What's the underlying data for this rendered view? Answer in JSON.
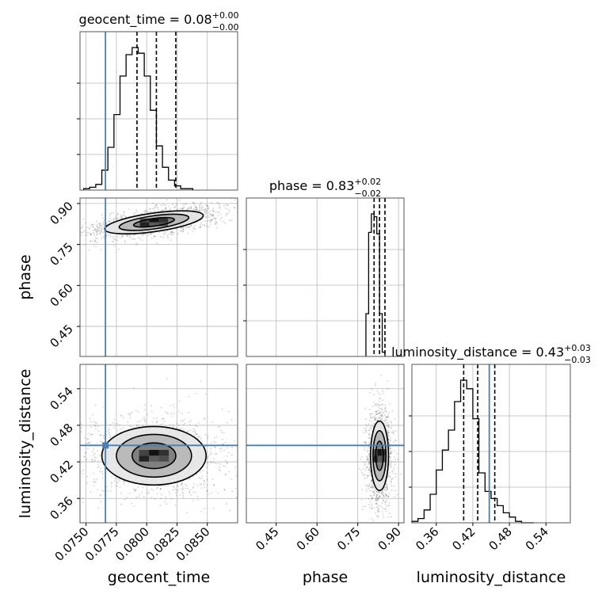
{
  "chart_data": {
    "type": "corner",
    "parameters": [
      "geocent_time",
      "phase",
      "luminosity_distance"
    ],
    "titles": [
      {
        "label": "geocent_time = 0.08",
        "plus": "+0.00",
        "minus": "−0.00"
      },
      {
        "label": "phase = 0.83",
        "plus": "+0.02",
        "minus": "−0.02"
      },
      {
        "label": "luminosity_distance = 0.43",
        "plus": "+0.03",
        "minus": "−0.03"
      }
    ],
    "truths": {
      "geocent_time": 0.0766,
      "phase": null,
      "luminosity_distance": 0.447
    },
    "ranges": {
      "geocent_time": [
        0.0745,
        0.0875
      ],
      "phase": [
        0.34,
        0.92
      ],
      "luminosity_distance": [
        0.32,
        0.58
      ]
    },
    "ticks": {
      "geocent_time": {
        "values": [
          0.075,
          0.0775,
          0.08,
          0.0825,
          0.085
        ],
        "labels": [
          "0.0750",
          "0.0775",
          "0.0800",
          "0.0825",
          "0.0850"
        ]
      },
      "phase": {
        "values": [
          0.45,
          0.6,
          0.75,
          0.9
        ],
        "labels": [
          "0.45",
          "0.60",
          "0.75",
          "0.90"
        ]
      },
      "luminosity_distance": {
        "values": [
          0.36,
          0.42,
          0.48,
          0.54
        ],
        "labels": [
          "0.36",
          "0.42",
          "0.48",
          "0.54"
        ]
      }
    },
    "quantiles": {
      "geocent_time": [
        0.0792,
        0.0808,
        0.0824
      ],
      "phase": [
        0.81,
        0.83,
        0.85
      ],
      "luminosity_distance": [
        0.405,
        0.428,
        0.456
      ]
    },
    "histograms": {
      "geocent_time": {
        "edges_start": 0.0748,
        "bin_width": 0.0005,
        "counts": [
          1,
          2,
          4,
          14,
          30,
          53,
          80,
          95,
          100,
          96,
          80,
          56,
          31,
          16,
          7,
          3,
          1,
          1
        ]
      },
      "phase": {
        "edges_start": 0.78,
        "bin_width": 0.01,
        "counts": [
          30,
          87,
          100,
          98,
          86,
          30,
          3
        ]
      },
      "luminosity_distance": {
        "edges_start": 0.32,
        "bin_width": 0.01,
        "counts": [
          1,
          3,
          9,
          20,
          37,
          51,
          65,
          85,
          100,
          94,
          73,
          35,
          22,
          17,
          12,
          7,
          4,
          1,
          0,
          0
        ]
      }
    },
    "contours_2d": [
      {
        "x": "geocent_time",
        "y": "phase",
        "center": [
          0.0806,
          0.831
        ],
        "rotation_deg": 8,
        "semi_axes": [
          [
            0.0041,
            0.034
          ],
          [
            0.0029,
            0.024
          ],
          [
            0.0017,
            0.014
          ]
        ]
      },
      {
        "x": "geocent_time",
        "y": "luminosity_distance",
        "center": [
          0.0806,
          0.43
        ],
        "rotation_deg": 0,
        "semi_axes": [
          [
            0.0043,
            0.048
          ],
          [
            0.0031,
            0.035
          ],
          [
            0.0018,
            0.021
          ]
        ]
      },
      {
        "x": "phase",
        "y": "luminosity_distance",
        "center": [
          0.83,
          0.43
        ],
        "rotation_deg": 0,
        "semi_axes": [
          [
            0.033,
            0.057
          ],
          [
            0.024,
            0.041
          ],
          [
            0.014,
            0.024
          ]
        ]
      }
    ],
    "grid": true
  }
}
